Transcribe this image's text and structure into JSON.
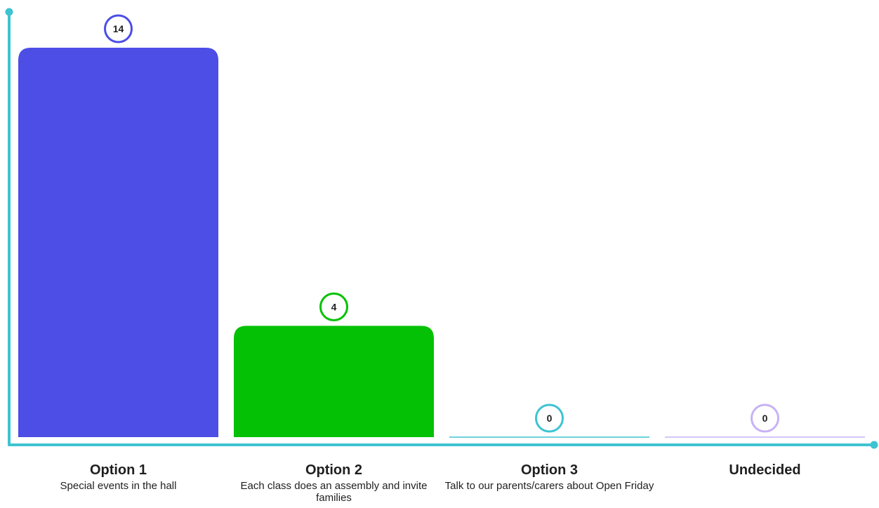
{
  "chart_data": {
    "type": "bar",
    "categories": [
      "Option 1",
      "Option 2",
      "Option 3",
      "Undecided"
    ],
    "subtitles": [
      "Special events in the hall",
      "Each class does an assembly and invite families",
      "Talk to our parents/carers about Open Friday",
      ""
    ],
    "values": [
      14,
      4,
      0,
      0
    ],
    "value_labels": [
      "14",
      "4",
      "0",
      "0"
    ],
    "colors": [
      "#4c4ee6",
      "#05c105",
      "#3ec3d1",
      "#c7b2f5"
    ],
    "axis_color": "#3ec3d1",
    "ylim": [
      0,
      14
    ],
    "grid": false,
    "title": "",
    "xlabel": "",
    "ylabel": ""
  }
}
